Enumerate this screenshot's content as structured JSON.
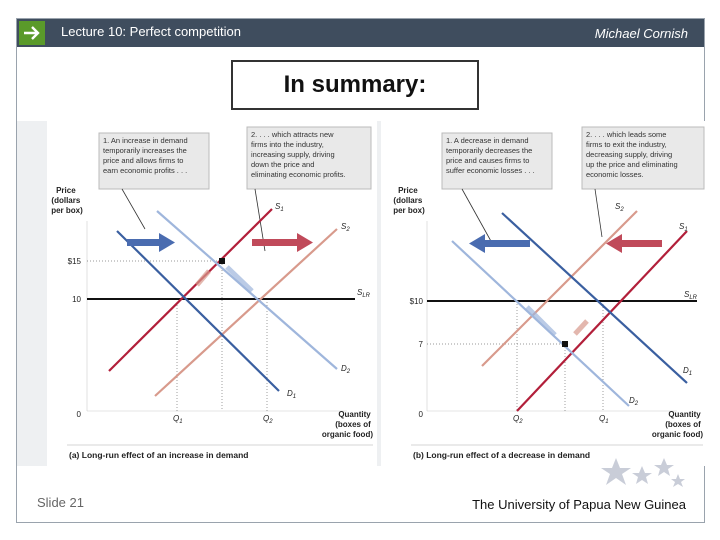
{
  "header": {
    "lecture": "Lecture 10:  Perfect competition",
    "author": "Michael Cornish"
  },
  "title": "In summary:",
  "footer": {
    "slide": "Slide 21",
    "university": "The University of Papua New Guinea"
  },
  "panel_a": {
    "ylabel": [
      "Price",
      "(dollars",
      "per box)"
    ],
    "callout1": [
      "1. An increase in demand",
      "temporarily increases the",
      "price and allows firms to",
      "earn economic profits . . ."
    ],
    "callout2": [
      "2. . . . which attracts new",
      "firms into the industry,",
      "increasing supply, driving",
      "down the price and",
      "eliminating economic profits."
    ],
    "price_high": "$15",
    "price_low": "10",
    "zero": "0",
    "q1": "Q",
    "q1_sub": "1",
    "q2": "Q",
    "q2_sub": "2",
    "s1": "S",
    "s1_sub": "1",
    "s2": "S",
    "s2_sub": "2",
    "slr": "S",
    "slr_sub": "LR",
    "d1": "D",
    "d1_sub": "1",
    "d2": "D",
    "d2_sub": "2",
    "xlabel": [
      "Quantity",
      "(boxes of",
      "organic food)"
    ],
    "caption": "(a) Long-run effect of an increase in demand"
  },
  "panel_b": {
    "ylabel": [
      "Price",
      "(dollars",
      "per box)"
    ],
    "callout1": [
      "1. A decrease in demand",
      "temporarily decreases the",
      "price and causes firms to",
      "suffer economic losses . . ."
    ],
    "callout2": [
      "2. . . . which leads some",
      "firms to exit the industry,",
      "decreasing supply, driving",
      "up the price and eliminating",
      "economic losses."
    ],
    "price_high": "$10",
    "price_low": "7",
    "zero": "0",
    "q2": "Q",
    "q2_sub": "2",
    "q1": "Q",
    "q1_sub": "1",
    "s1": "S",
    "s1_sub": "1",
    "s2": "S",
    "s2_sub": "2",
    "slr": "S",
    "slr_sub": "LR",
    "d1": "D",
    "d1_sub": "1",
    "d2": "D",
    "d2_sub": "2",
    "xlabel": [
      "Quantity",
      "(boxes of",
      "organic food)"
    ],
    "caption": "(b) Long-run effect of a decrease in demand"
  },
  "colors": {
    "topbar": "#3f4d5e",
    "accent_green": "#5a9a2a",
    "demand_dark": "#3a5fa0",
    "demand_light": "#9fb6dc",
    "supply_dark": "#b21f3a",
    "supply_light": "#d89a8c",
    "callout_bg": "#e9e9e9"
  },
  "icons": {
    "nav": "arrow-right-icon",
    "decor": "stars-icon"
  }
}
